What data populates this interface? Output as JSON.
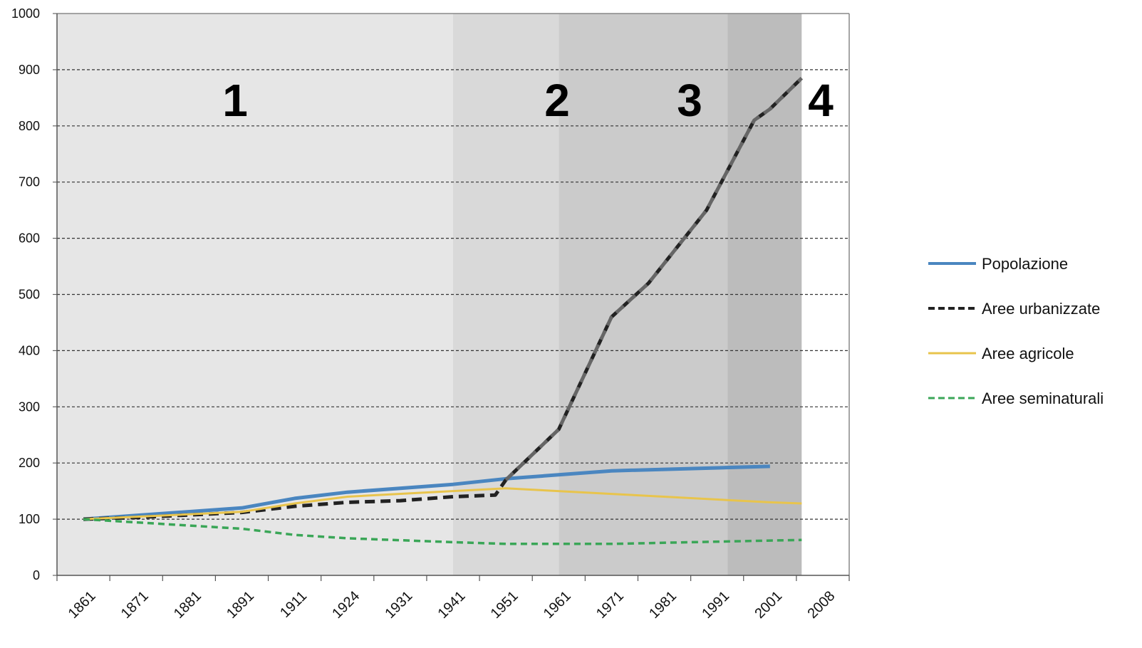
{
  "chart_data": {
    "type": "line",
    "title": "",
    "xlabel": "",
    "ylabel": "",
    "categories": [
      "1861",
      "1871",
      "1881",
      "1891",
      "1911",
      "1924",
      "1931",
      "1941",
      "1951",
      "1961",
      "1971",
      "1981",
      "1991",
      "2001",
      "2008"
    ],
    "ylim": [
      0,
      1000
    ],
    "yticks": [
      "0",
      "100",
      "200",
      "300",
      "400",
      "500",
      "600",
      "700",
      "800",
      "900",
      "1000"
    ],
    "grid": "horizontal dashed",
    "legend_position": "right",
    "phases": [
      {
        "label": "1",
        "from": 0,
        "to": 7.5,
        "shade": "#e6e6e6"
      },
      {
        "label": "2",
        "from": 7.5,
        "to": 9.5,
        "shade": "#d9d9d9"
      },
      {
        "label": "3",
        "from": 9.5,
        "to": 12.7,
        "shade": "#cbcbcb"
      },
      {
        "label": "4",
        "from": 12.7,
        "to": 14.1,
        "shade": "#bcbcbc"
      }
    ],
    "series": [
      {
        "name": "Popolazione",
        "color": "#4a86c0",
        "dash": "solid",
        "width": 5,
        "x": [
          0.5,
          3.5,
          4.5,
          5.5,
          7.5,
          8.5,
          10.5,
          13.5
        ],
        "values": [
          100,
          120,
          137,
          148,
          162,
          172,
          186,
          194
        ]
      },
      {
        "name": "Aree urbanizzate",
        "color": "#222222",
        "color_late": "#666666",
        "dash": "dashed",
        "width": 5,
        "x": [
          0.5,
          1.5,
          3.5,
          4.5,
          5.5,
          6.5,
          7.5,
          8.3,
          8.5,
          9.5,
          10.5,
          11.2,
          12.3,
          13.2,
          13.5,
          14.1
        ],
        "values": [
          100,
          103,
          112,
          123,
          130,
          133,
          140,
          143,
          170,
          260,
          460,
          520,
          650,
          810,
          830,
          885
        ]
      },
      {
        "name": "Aree agricole",
        "color": "#e8c44c",
        "dash": "solid",
        "width": 3,
        "x": [
          0.5,
          3.5,
          4.5,
          5.5,
          7.5,
          8.5,
          10.5,
          13.5,
          14.1
        ],
        "values": [
          100,
          113,
          128,
          140,
          150,
          155,
          145,
          130,
          128
        ]
      },
      {
        "name": "Aree seminaturali",
        "color": "#3aa657",
        "dash": "dashed",
        "width": 3.5,
        "x": [
          0.5,
          3.5,
          4.5,
          5.5,
          7.5,
          8.5,
          10.5,
          13.5,
          14.1
        ],
        "values": [
          100,
          83,
          72,
          66,
          59,
          56,
          56,
          62,
          63
        ]
      }
    ]
  }
}
